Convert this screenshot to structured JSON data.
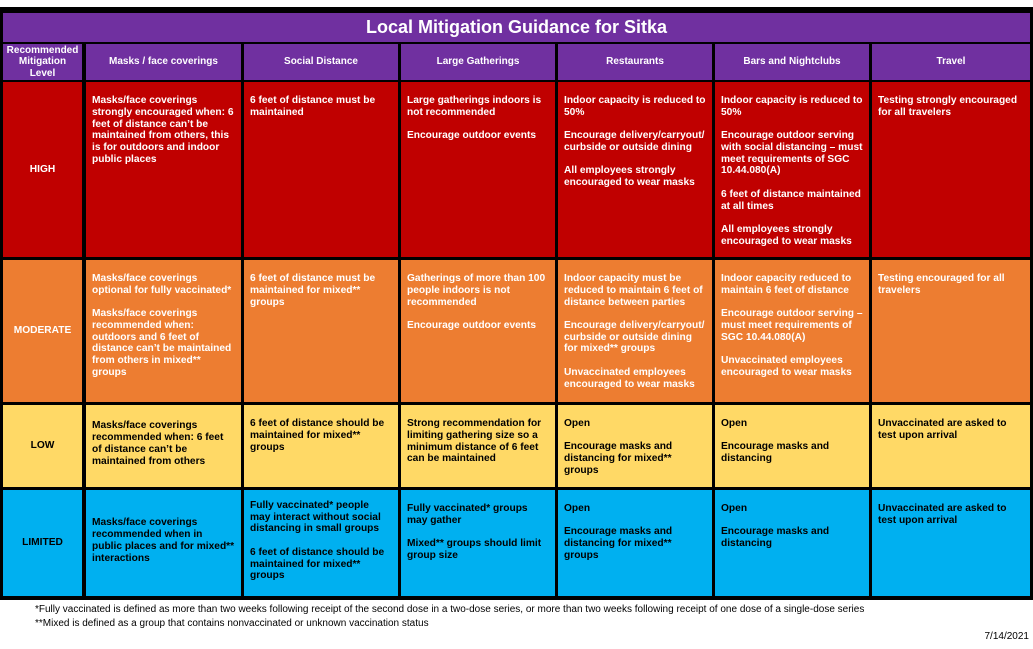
{
  "title": "Local Mitigation Guidance for Sitka",
  "headers": [
    "Recommended Mitigation Level",
    "Masks / face coverings",
    "Social Distance",
    "Large Gatherings",
    "Restaurants",
    "Bars and Nightclubs",
    "Travel"
  ],
  "colors": {
    "header": "#7030a0",
    "high": "#c00000",
    "moderate": "#ed7d31",
    "low": "#ffd966",
    "limited": "#00b0f0"
  },
  "rows": [
    {
      "level": "HIGH",
      "cells": [
        [
          "Masks/face coverings strongly encouraged when: 6 feet of distance can’t be maintained from others, this is for outdoors and indoor public places"
        ],
        [
          "6 feet of distance must be maintained"
        ],
        [
          "Large gatherings indoors is not recommended",
          "Encourage outdoor events"
        ],
        [
          "Indoor capacity is reduced to 50%",
          "Encourage delivery/carryout/ curbside or outside dining",
          "All employees strongly encouraged to wear masks"
        ],
        [
          "Indoor capacity is reduced to 50%",
          "Encourage outdoor serving with social distancing – must meet requirements of SGC 10.44.080(A)",
          "6 feet of distance maintained at all times",
          "All employees strongly encouraged to wear masks"
        ],
        [
          "Testing strongly encouraged for all travelers"
        ]
      ]
    },
    {
      "level": "MODERATE",
      "cells": [
        [
          "Masks/face coverings optional for fully vaccinated*",
          "Masks/face coverings recommended when: outdoors and 6 feet of distance can’t be maintained from others in mixed** groups"
        ],
        [
          "6 feet of distance must be maintained for mixed** groups"
        ],
        [
          "Gatherings of more than 100 people indoors is not recommended",
          "Encourage outdoor events"
        ],
        [
          "Indoor capacity must be reduced to maintain 6 feet of distance between parties",
          "Encourage delivery/carryout/ curbside or outside dining for mixed** groups",
          "Unvaccinated employees encouraged to wear masks"
        ],
        [
          "Indoor capacity reduced to maintain 6 feet of distance",
          "Encourage outdoor serving – must meet requirements of SGC 10.44.080(A)",
          "Unvaccinated employees encouraged to wear masks"
        ],
        [
          "Testing encouraged for all travelers"
        ]
      ]
    },
    {
      "level": "LOW",
      "cells": [
        [
          "Masks/face coverings recommended when: 6 feet of distance can’t be maintained from others"
        ],
        [
          "6 feet of distance should be maintained for mixed** groups"
        ],
        [
          "Strong recommendation for limiting gathering size so a minimum distance of 6 feet can be maintained"
        ],
        [
          "Open",
          "Encourage masks and distancing for mixed** groups"
        ],
        [
          "Open",
          "Encourage masks and distancing"
        ],
        [
          "Unvaccinated are asked to test upon arrival"
        ]
      ]
    },
    {
      "level": "LIMITED",
      "cells": [
        [
          "Masks/face coverings recommended when in public places and for mixed** interactions"
        ],
        [
          "Fully vaccinated* people may interact without social distancing in small groups",
          "6 feet of distance should be maintained for mixed** groups"
        ],
        [
          "Fully vaccinated* groups may gather",
          "Mixed** groups should limit group size"
        ],
        [
          "Open",
          "Encourage masks and distancing for mixed** groups"
        ],
        [
          "Open",
          "Encourage masks and distancing"
        ],
        [
          "Unvaccinated are asked to test upon arrival"
        ]
      ]
    }
  ],
  "footnotes": [
    "*Fully vaccinated is defined as more than two weeks following receipt of the second dose in a two-dose series, or more than two weeks following receipt of one dose of a single-dose series",
    "**Mixed is defined as a group that contains nonvaccinated or unknown vaccination status"
  ],
  "date": "7/14/2021"
}
